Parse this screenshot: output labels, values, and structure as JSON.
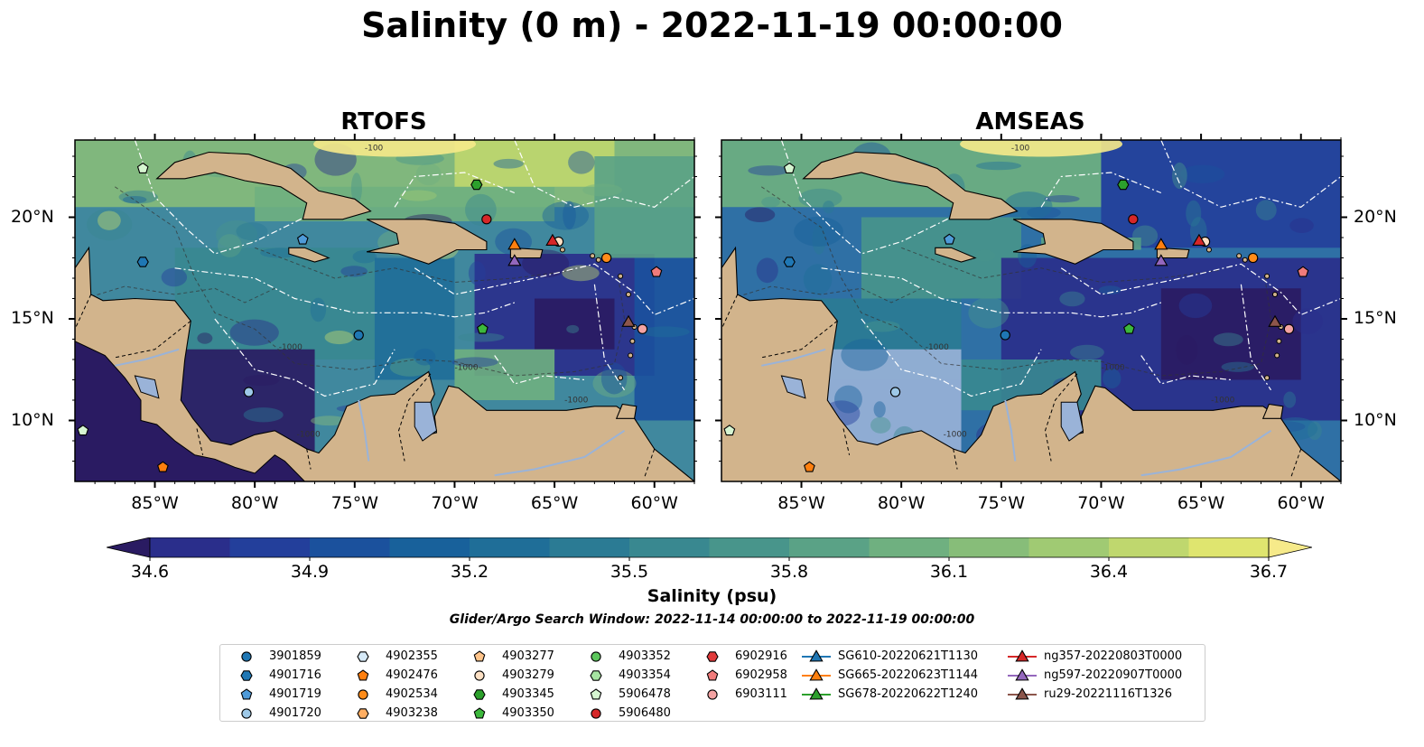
{
  "title": "Salinity (0 m) - 2022-11-19 00:00:00",
  "panels": [
    {
      "name": "RTOFS"
    },
    {
      "name": "AMSEAS"
    }
  ],
  "map": {
    "lon_ticks": [
      "85°W",
      "80°W",
      "75°W",
      "70°W",
      "65°W",
      "60°W"
    ],
    "lat_ticks": [
      "20°N",
      "15°N",
      "10°N"
    ],
    "lon_values": [
      -85,
      -80,
      -75,
      -70,
      -65,
      -60
    ],
    "lat_values": [
      20,
      15,
      10
    ],
    "extent": {
      "lon_min": -89,
      "lon_max": -58,
      "lat_min": 7,
      "lat_max": 23.8
    },
    "contour_labels": [
      "-100",
      "-1000"
    ],
    "colors": {
      "land": "#d2b48c",
      "lakes": "#9ab3d8",
      "coast": "#000000",
      "eez": "#ffffff"
    }
  },
  "colorbar": {
    "label": "Salinity (psu)",
    "ticks": [
      "34.6",
      "34.9",
      "35.2",
      "35.5",
      "35.8",
      "36.1",
      "36.4",
      "36.7"
    ],
    "vmin": 34.6,
    "vmax": 36.7,
    "extend": "both",
    "colormap": [
      "#2a1b62",
      "#2a2e8b",
      "#233f9b",
      "#1b519d",
      "#18619b",
      "#1f6e98",
      "#2b7b94",
      "#398890",
      "#48958b",
      "#5aa286",
      "#6fb080",
      "#87bd79",
      "#a0ca73",
      "#bfd76e",
      "#dfe56f",
      "#f6ea8a"
    ]
  },
  "search_window": "Glider/Argo Search Window: 2022-11-14 00:00:00 to 2022-11-19 00:00:00",
  "legend": {
    "columns": [
      [
        {
          "label": "3901859",
          "marker": "circle",
          "color": "#1f77b4"
        },
        {
          "label": "4901716",
          "marker": "hexagon",
          "color": "#1f77b4"
        },
        {
          "label": "4901719",
          "marker": "pentagon",
          "color": "#4f9bd9"
        },
        {
          "label": "4901720",
          "marker": "circle",
          "color": "#9ec9e8"
        }
      ],
      [
        {
          "label": "4902355",
          "marker": "hexagon",
          "color": "#d6eaf8"
        },
        {
          "label": "4902476",
          "marker": "pentagon",
          "color": "#ff7f0e"
        },
        {
          "label": "4902534",
          "marker": "circle",
          "color": "#ff8c1a"
        },
        {
          "label": "4903238",
          "marker": "hexagon",
          "color": "#ffae62"
        }
      ],
      [
        {
          "label": "4903277",
          "marker": "pentagon",
          "color": "#ffc48a"
        },
        {
          "label": "4903279",
          "marker": "circle",
          "color": "#fde0c4"
        },
        {
          "label": "4903345",
          "marker": "hexagon",
          "color": "#2ca02c"
        },
        {
          "label": "4903350",
          "marker": "pentagon",
          "color": "#3cb83c"
        }
      ],
      [
        {
          "label": "4903352",
          "marker": "circle",
          "color": "#5cc65c"
        },
        {
          "label": "4903354",
          "marker": "hexagon",
          "color": "#a6e3a1"
        },
        {
          "label": "5906478",
          "marker": "pentagon",
          "color": "#d6f5d1"
        },
        {
          "label": "5906480",
          "marker": "circle",
          "color": "#d62728"
        }
      ],
      [
        {
          "label": "6902916",
          "marker": "hexagon",
          "color": "#e0393a"
        },
        {
          "label": "6902958",
          "marker": "pentagon",
          "color": "#f07b7b"
        },
        {
          "label": "6903111",
          "marker": "circle",
          "color": "#f4a3a3"
        }
      ],
      [
        {
          "label": "SG610-20220621T1130",
          "marker": "triangle",
          "color": "#1f77b4"
        },
        {
          "label": "SG665-20220623T1144",
          "marker": "triangle",
          "color": "#ff7f0e"
        },
        {
          "label": "SG678-20220622T1240",
          "marker": "triangle",
          "color": "#2ca02c"
        }
      ],
      [
        {
          "label": "ng357-20220803T0000",
          "marker": "triangle",
          "color": "#d62728"
        },
        {
          "label": "ng597-20220907T0000",
          "marker": "triangle",
          "color": "#9467bd"
        },
        {
          "label": "ru29-20221116T1326",
          "marker": "triangle",
          "color": "#8c564b"
        }
      ]
    ]
  }
}
